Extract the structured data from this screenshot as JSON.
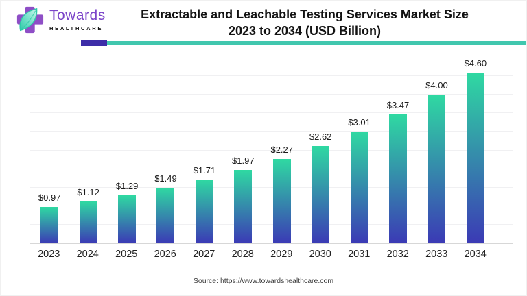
{
  "brand": {
    "name": "Towards",
    "tagline": "HEALTHCARE",
    "purple": "#8A4BC8",
    "teal": "#35CDA9"
  },
  "header": {
    "title_line1": "Extractable and Leachable Testing Services Market Size",
    "title_line2": "2023 to 2034 (USD Billion)",
    "divider_purple": "#3D2DA8",
    "divider_teal": "#41C7AE"
  },
  "chart_data": {
    "type": "bar",
    "title": "Extractable and Leachable Testing Services Market Size 2023 to 2034 (USD Billion)",
    "categories": [
      "2023",
      "2024",
      "2025",
      "2026",
      "2027",
      "2028",
      "2029",
      "2030",
      "2031",
      "2032",
      "2033",
      "2034"
    ],
    "values": [
      0.97,
      1.12,
      1.29,
      1.49,
      1.71,
      1.97,
      2.27,
      2.62,
      3.01,
      3.47,
      4.0,
      4.6
    ],
    "value_labels": [
      "$0.97",
      "$1.12",
      "$1.29",
      "$1.49",
      "$1.71",
      "$1.97",
      "$2.27",
      "$2.62",
      "$3.01",
      "$3.47",
      "$4.00",
      "$4.60"
    ],
    "unit": "USD Billion",
    "xlabel": "",
    "ylabel": "",
    "ylim": [
      0,
      5
    ],
    "grid": "horizontal",
    "grid_step": 0.5,
    "legend": "none",
    "bar_gradient_top": "#2FD9A2",
    "bar_gradient_bottom": "#3B3AB5"
  },
  "footer": {
    "source": "Source: https://www.towardshealthcare.com"
  }
}
